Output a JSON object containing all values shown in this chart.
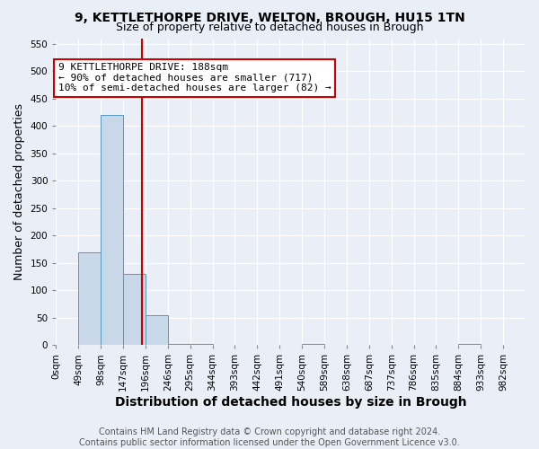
{
  "title": "9, KETTLETHORPE DRIVE, WELTON, BROUGH, HU15 1TN",
  "subtitle": "Size of property relative to detached houses in Brough",
  "xlabel": "Distribution of detached houses by size in Brough",
  "ylabel": "Number of detached properties",
  "bin_edges": [
    0,
    49,
    98,
    147,
    196,
    245,
    294,
    343,
    392,
    441,
    490,
    539,
    588,
    637,
    686,
    735,
    784,
    833,
    882,
    931,
    980,
    1029
  ],
  "bar_heights": [
    0,
    170,
    420,
    130,
    55,
    2,
    2,
    0,
    0,
    0,
    0,
    2,
    0,
    0,
    0,
    0,
    0,
    0,
    2,
    0,
    0
  ],
  "bar_color": "#c8d8e8",
  "bar_edgecolor": "#5599bb",
  "red_line_x": 188,
  "annotation_text": "9 KETTLETHORPE DRIVE: 188sqm\n← 90% of detached houses are smaller (717)\n10% of semi-detached houses are larger (82) →",
  "annotation_box_color": "#ffffff",
  "annotation_box_edgecolor": "#cc0000",
  "ylim": [
    0,
    560
  ],
  "yticks": [
    0,
    50,
    100,
    150,
    200,
    250,
    300,
    350,
    400,
    450,
    500,
    550
  ],
  "tick_labels": [
    "0sqm",
    "49sqm",
    "98sqm",
    "147sqm",
    "196sqm",
    "246sqm",
    "295sqm",
    "344sqm",
    "393sqm",
    "442sqm",
    "491sqm",
    "540sqm",
    "589sqm",
    "638sqm",
    "687sqm",
    "737sqm",
    "786sqm",
    "835sqm",
    "884sqm",
    "933sqm",
    "982sqm"
  ],
  "footer_line1": "Contains HM Land Registry data © Crown copyright and database right 2024.",
  "footer_line2": "Contains public sector information licensed under the Open Government Licence v3.0.",
  "background_color": "#eaeff7",
  "grid_color": "#ffffff",
  "title_fontsize": 10,
  "subtitle_fontsize": 9,
  "axis_label_fontsize": 9,
  "xlabel_fontsize": 10,
  "tick_fontsize": 7.5,
  "footer_fontsize": 7,
  "annot_fontsize": 8
}
